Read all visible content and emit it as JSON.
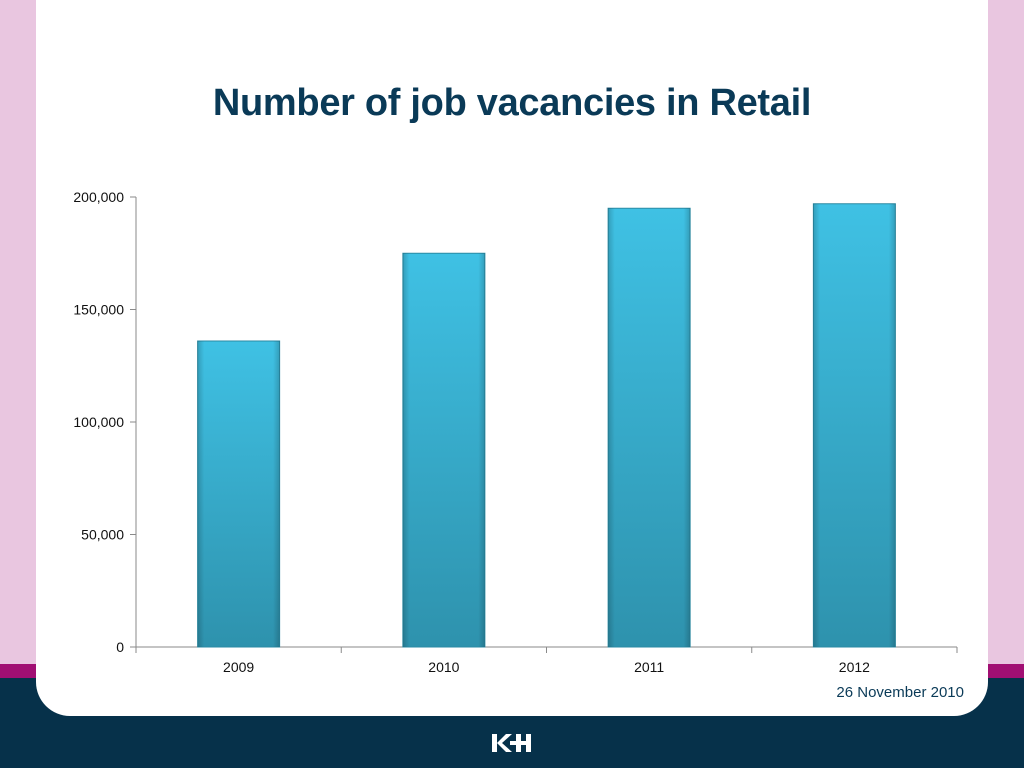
{
  "footer": {
    "date": "26 November 2010",
    "logo_text": "KH"
  },
  "colors": {
    "bar_top": "#3fc1e4",
    "bar_bottom": "#2e92ad",
    "title": "#0a3a57",
    "footer_band": "#06314a",
    "side_band": "#e9c6e0",
    "accent_strip": "#a10f73"
  },
  "chart_data": {
    "type": "bar",
    "title": "Number of job vacancies in Retail",
    "xlabel": "",
    "ylabel": "",
    "categories": [
      "2009",
      "2010",
      "2011",
      "2012"
    ],
    "values": [
      136000,
      175000,
      195000,
      197000
    ],
    "ylim": [
      0,
      200000
    ],
    "yticks": [
      0,
      50000,
      100000,
      150000,
      200000
    ],
    "ytick_labels": [
      "0",
      "50,000",
      "100,000",
      "150,000",
      "200,000"
    ],
    "grid": false,
    "legend": "none"
  }
}
